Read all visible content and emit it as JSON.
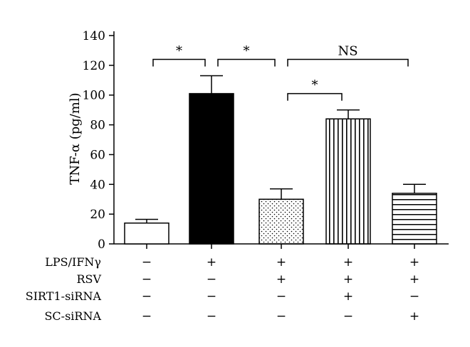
{
  "chart_data": {
    "type": "bar",
    "ylabel": "TNF-α (pg/ml)",
    "ylim": [
      0,
      140
    ],
    "yticks": [
      "0",
      "20",
      "40",
      "60",
      "80",
      "100",
      "120",
      "140"
    ],
    "bars": [
      {
        "value": 14,
        "error": 2.5,
        "pattern": "white"
      },
      {
        "value": 101,
        "error": 12,
        "pattern": "black"
      },
      {
        "value": 30,
        "error": 7,
        "pattern": "dots"
      },
      {
        "value": 84,
        "error": 6,
        "pattern": "vertical-lines"
      },
      {
        "value": 34,
        "error": 6,
        "pattern": "horizontal-lines"
      }
    ],
    "conditions": [
      {
        "label": "LPS/IFNγ",
        "signs": [
          "−",
          "+",
          "+",
          "+",
          "+"
        ]
      },
      {
        "label": "RSV",
        "signs": [
          "−",
          "−",
          "+",
          "+",
          "+"
        ]
      },
      {
        "label": "SIRT1-siRNA",
        "signs": [
          "−",
          "−",
          "−",
          "+",
          "−"
        ]
      },
      {
        "label": "SC-siRNA",
        "signs": [
          "−",
          "−",
          "−",
          "−",
          "+"
        ]
      }
    ],
    "comparisons": [
      {
        "from": 0,
        "to": 1,
        "label": "*",
        "y": 124
      },
      {
        "from": 1,
        "to": 2,
        "label": "*",
        "y": 124
      },
      {
        "from": 2,
        "to": 4,
        "label": "NS",
        "y": 124
      },
      {
        "from": 2,
        "to": 3,
        "label": "*",
        "y": 101
      }
    ]
  }
}
